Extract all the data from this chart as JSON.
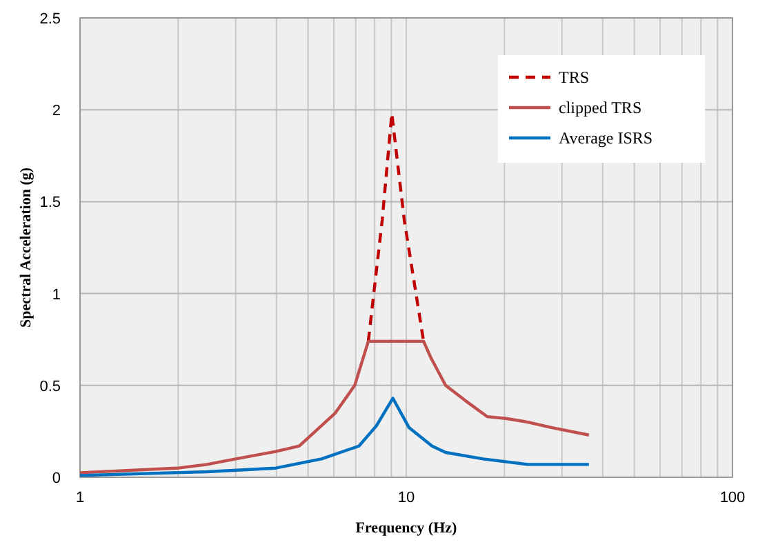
{
  "chart_data": {
    "type": "line",
    "xlabel": "Frequency (Hz)",
    "ylabel": "Spectral Acceleration (g)",
    "log": "x",
    "grid": true,
    "legend": "top right",
    "xlim": [
      1,
      100
    ],
    "ylim": [
      0,
      2.5
    ],
    "xticks": [
      1,
      {
        "value": 2,
        "label": null
      },
      {
        "value": 3,
        "label": null
      },
      {
        "value": 4,
        "label": null
      },
      {
        "value": 5,
        "label": null
      },
      {
        "value": 6,
        "label": null
      },
      {
        "value": 7,
        "label": null
      },
      {
        "value": 8,
        "label": null
      },
      {
        "value": 9,
        "label": null
      },
      10,
      {
        "value": 20,
        "label": null
      },
      {
        "value": 30,
        "label": null
      },
      {
        "value": 40,
        "label": null
      },
      {
        "value": 50,
        "label": null
      },
      {
        "value": 60,
        "label": null
      },
      {
        "value": 70,
        "label": null
      },
      {
        "value": 80,
        "label": null
      },
      {
        "value": 90,
        "label": null
      },
      100
    ],
    "yticks": [
      0,
      0.5,
      1,
      1.5,
      2,
      2.5
    ],
    "series": [
      {
        "name": "TRS",
        "color": "#c00000",
        "line_style": "dashed",
        "x": [
          7.65,
          8.44,
          9.03,
          9.86,
          11.3
        ],
        "values": [
          0.74,
          1.4,
          1.98,
          1.4,
          0.74
        ]
      },
      {
        "name": "clipped TRS",
        "color": "#c0504d",
        "line_style": "solid",
        "x": [
          1,
          2,
          2.45,
          3,
          3.98,
          4.7,
          6.06,
          6.95,
          7.65,
          11.3,
          11.9,
          13.2,
          15.1,
          17.7,
          20.2,
          23.6,
          28,
          36.3
        ],
        "values": [
          0.025,
          0.05,
          0.07,
          0.1,
          0.14,
          0.17,
          0.35,
          0.5,
          0.74,
          0.74,
          0.65,
          0.5,
          0.42,
          0.33,
          0.32,
          0.3,
          0.27,
          0.23
        ]
      },
      {
        "name": "Average ISRS",
        "color": "#0070c0",
        "line_style": "solid",
        "x": [
          1,
          2.45,
          3.98,
          5.5,
          7.16,
          8.1,
          9.1,
          10.2,
          12,
          13.2,
          17.2,
          23.6,
          36.3
        ],
        "values": [
          0.01,
          0.03,
          0.05,
          0.1,
          0.17,
          0.28,
          0.43,
          0.27,
          0.17,
          0.135,
          0.1,
          0.07,
          0.07
        ]
      }
    ]
  }
}
